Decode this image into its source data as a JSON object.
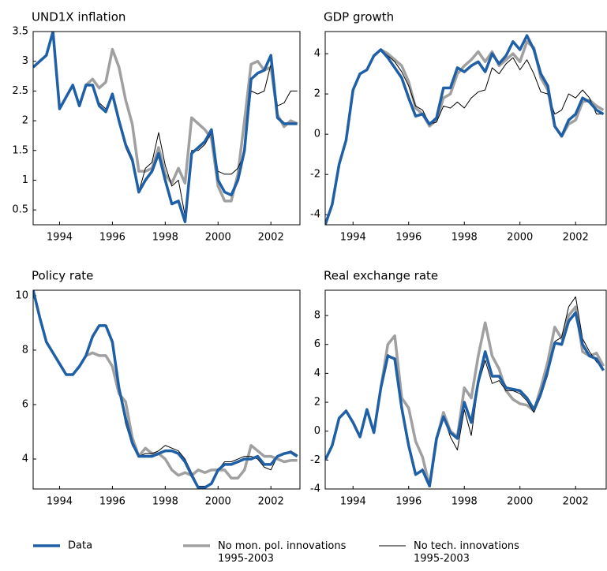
{
  "chart_data": [
    {
      "type": "line",
      "title": "UND1X inflation",
      "x": [
        1993,
        1993.25,
        1993.5,
        1993.75,
        1994,
        1994.25,
        1994.5,
        1994.75,
        1995,
        1995.25,
        1995.5,
        1995.75,
        1996,
        1996.25,
        1996.5,
        1996.75,
        1997,
        1997.25,
        1997.5,
        1997.75,
        1998,
        1998.25,
        1998.5,
        1998.75,
        1999,
        1999.25,
        1999.5,
        1999.75,
        2000,
        2000.25,
        2000.5,
        2000.75,
        2001,
        2001.25,
        2001.5,
        2001.75,
        2002,
        2002.25,
        2002.5,
        2002.75,
        2003
      ],
      "xlim": [
        1993,
        2003.1
      ],
      "xticks": [
        1994,
        1996,
        1998,
        2000,
        2002
      ],
      "ylim": [
        0.25,
        3.5
      ],
      "yticks": [
        0.5,
        1,
        1.5,
        2,
        2.5,
        3,
        3.5
      ],
      "series": [
        {
          "name": "Data",
          "color": "#1f5fa6",
          "values": [
            2.9,
            3.0,
            3.1,
            3.5,
            2.2,
            2.4,
            2.6,
            2.25,
            2.6,
            2.6,
            2.25,
            2.15,
            2.45,
            2.0,
            1.6,
            1.35,
            0.8,
            1.0,
            1.15,
            1.45,
            1.0,
            0.6,
            0.65,
            0.3,
            1.45,
            1.55,
            1.65,
            1.85,
            1.0,
            0.8,
            0.75,
            1.0,
            1.5,
            2.7,
            2.8,
            2.85,
            3.1,
            2.05,
            1.95,
            1.95,
            1.95
          ]
        },
        {
          "name": "No mon. pol. innovations\n1995-2003",
          "color": "#a0a0a0",
          "values": [
            null,
            null,
            null,
            null,
            null,
            null,
            null,
            null,
            2.6,
            2.7,
            2.55,
            2.65,
            3.2,
            2.9,
            2.35,
            1.95,
            1.15,
            1.15,
            1.2,
            1.55,
            1.1,
            0.95,
            1.2,
            0.95,
            2.05,
            1.95,
            1.85,
            1.7,
            0.9,
            0.65,
            0.65,
            1.1,
            2.0,
            2.95,
            3.0,
            2.85,
            2.9,
            2.1,
            1.9,
            2.0,
            1.95
          ]
        },
        {
          "name": "No tech. innovations\n1995-2003",
          "color": "#000000",
          "values": [
            null,
            null,
            null,
            null,
            null,
            null,
            null,
            null,
            2.6,
            2.6,
            2.3,
            2.2,
            2.45,
            1.95,
            1.55,
            1.3,
            0.8,
            1.2,
            1.3,
            1.8,
            1.25,
            0.9,
            1.0,
            0.4,
            1.5,
            1.5,
            1.6,
            1.8,
            1.15,
            1.1,
            1.1,
            1.2,
            1.45,
            2.5,
            2.45,
            2.5,
            2.95,
            2.25,
            2.3,
            2.5,
            2.5
          ]
        }
      ]
    },
    {
      "type": "line",
      "title": "GDP growth",
      "x": [
        1993,
        1993.25,
        1993.5,
        1993.75,
        1994,
        1994.25,
        1994.5,
        1994.75,
        1995,
        1995.25,
        1995.5,
        1995.75,
        1996,
        1996.25,
        1996.5,
        1996.75,
        1997,
        1997.25,
        1997.5,
        1997.75,
        1998,
        1998.25,
        1998.5,
        1998.75,
        1999,
        1999.25,
        1999.5,
        1999.75,
        2000,
        2000.25,
        2000.5,
        2000.75,
        2001,
        2001.25,
        2001.5,
        2001.75,
        2002,
        2002.25,
        2002.5,
        2002.75,
        2003
      ],
      "xlim": [
        1993,
        2003.1
      ],
      "xticks": [
        1994,
        1996,
        1998,
        2000,
        2002
      ],
      "ylim": [
        -4.5,
        5.1
      ],
      "yticks": [
        -4,
        -2,
        0,
        2,
        4
      ],
      "series": [
        {
          "name": "Data",
          "color": "#1f5fa6",
          "values": [
            -4.5,
            -3.5,
            -1.5,
            -0.3,
            2.2,
            3.0,
            3.2,
            3.9,
            4.2,
            3.8,
            3.3,
            2.8,
            1.8,
            0.9,
            1.0,
            0.5,
            0.8,
            2.3,
            2.3,
            3.3,
            3.1,
            3.4,
            3.6,
            3.1,
            4.0,
            3.5,
            3.9,
            4.6,
            4.2,
            4.9,
            4.2,
            3.0,
            2.4,
            0.4,
            -0.1,
            0.7,
            1.0,
            1.8,
            1.6,
            1.2,
            1.0
          ]
        },
        {
          "name": "No mon. pol. innovations\n1995-2003",
          "color": "#a0a0a0",
          "values": [
            null,
            null,
            null,
            null,
            null,
            null,
            null,
            null,
            4.2,
            4.0,
            3.7,
            3.4,
            2.6,
            1.3,
            1.0,
            0.4,
            0.7,
            1.8,
            2.0,
            3.0,
            3.4,
            3.7,
            4.1,
            3.6,
            4.1,
            3.4,
            3.7,
            4.0,
            3.6,
            4.6,
            4.3,
            2.8,
            2.2,
            0.4,
            -0.1,
            0.5,
            0.7,
            1.6,
            1.7,
            1.4,
            1.2
          ]
        },
        {
          "name": "No tech. innovations\n1995-2003",
          "color": "#000000",
          "values": [
            null,
            null,
            null,
            null,
            null,
            null,
            null,
            null,
            4.2,
            3.9,
            3.6,
            3.1,
            2.4,
            1.4,
            1.2,
            0.5,
            0.6,
            1.4,
            1.3,
            1.6,
            1.3,
            1.8,
            2.1,
            2.2,
            3.3,
            3.0,
            3.5,
            3.8,
            3.2,
            3.7,
            3.0,
            2.1,
            2.0,
            1.0,
            1.2,
            2.0,
            1.8,
            2.2,
            1.8,
            1.0,
            1.0
          ]
        }
      ]
    },
    {
      "type": "line",
      "title": "Policy rate",
      "x": [
        1993,
        1993.25,
        1993.5,
        1993.75,
        1994,
        1994.25,
        1994.5,
        1994.75,
        1995,
        1995.25,
        1995.5,
        1995.75,
        1996,
        1996.25,
        1996.5,
        1996.75,
        1997,
        1997.25,
        1997.5,
        1997.75,
        1998,
        1998.25,
        1998.5,
        1998.75,
        1999,
        1999.25,
        1999.5,
        1999.75,
        2000,
        2000.25,
        2000.5,
        2000.75,
        2001,
        2001.25,
        2001.5,
        2001.75,
        2002,
        2002.25,
        2002.5,
        2002.75,
        2003
      ],
      "xlim": [
        1993,
        2003.1
      ],
      "xticks": [
        1994,
        1996,
        1998,
        2000,
        2002
      ],
      "ylim": [
        2.9,
        10.2
      ],
      "yticks": [
        4,
        6,
        8,
        10
      ],
      "series": [
        {
          "name": "Data",
          "color": "#1f5fa6",
          "values": [
            10.2,
            9.2,
            8.3,
            7.9,
            7.5,
            7.1,
            7.1,
            7.4,
            7.8,
            8.5,
            8.9,
            8.9,
            8.3,
            6.6,
            5.5,
            4.6,
            4.1,
            4.1,
            4.1,
            4.2,
            4.3,
            4.3,
            4.2,
            3.9,
            3.4,
            2.95,
            2.95,
            3.1,
            3.6,
            3.8,
            3.8,
            3.9,
            4.0,
            4.0,
            4.1,
            3.8,
            3.8,
            4.1,
            4.2,
            4.25,
            4.1
          ]
        },
        {
          "name": "No mon. pol. innovations\n1995-2003",
          "color": "#a0a0a0",
          "values": [
            null,
            null,
            null,
            null,
            null,
            null,
            null,
            null,
            7.8,
            7.9,
            7.8,
            7.8,
            7.4,
            6.4,
            6.1,
            4.8,
            4.1,
            4.4,
            4.2,
            4.2,
            4.0,
            3.6,
            3.4,
            3.5,
            3.4,
            3.6,
            3.5,
            3.6,
            3.6,
            3.6,
            3.3,
            3.3,
            3.6,
            4.5,
            4.3,
            4.1,
            4.1,
            4.0,
            3.9,
            3.95,
            3.95
          ]
        },
        {
          "name": "No tech. innovations\n1995-2003",
          "color": "#000000",
          "values": [
            null,
            null,
            null,
            null,
            null,
            null,
            null,
            null,
            7.8,
            8.5,
            8.9,
            8.9,
            8.2,
            6.5,
            5.3,
            4.5,
            4.1,
            4.2,
            4.2,
            4.3,
            4.5,
            4.4,
            4.3,
            4.0,
            3.5,
            3.0,
            3.0,
            3.1,
            3.6,
            3.9,
            3.9,
            4.0,
            4.1,
            4.1,
            4.0,
            3.7,
            3.6,
            4.1,
            4.2,
            4.3,
            4.15
          ]
        }
      ]
    },
    {
      "type": "line",
      "title": "Real exchange rate",
      "x": [
        1993,
        1993.25,
        1993.5,
        1993.75,
        1994,
        1994.25,
        1994.5,
        1994.75,
        1995,
        1995.25,
        1995.5,
        1995.75,
        1996,
        1996.25,
        1996.5,
        1996.75,
        1997,
        1997.25,
        1997.5,
        1997.75,
        1998,
        1998.25,
        1998.5,
        1998.75,
        1999,
        1999.25,
        1999.5,
        1999.75,
        2000,
        2000.25,
        2000.5,
        2000.75,
        2001,
        2001.25,
        2001.5,
        2001.75,
        2002,
        2002.25,
        2002.5,
        2002.75,
        2003
      ],
      "xlim": [
        1993,
        2003.1
      ],
      "xticks": [
        1994,
        1996,
        1998,
        2000,
        2002
      ],
      "ylim": [
        -4,
        9.75
      ],
      "yticks": [
        -4,
        -2,
        0,
        2,
        4,
        6,
        8
      ],
      "series": [
        {
          "name": "Data",
          "color": "#1f5fa6",
          "values": [
            -2.0,
            -1.0,
            0.9,
            1.4,
            0.6,
            -0.4,
            1.5,
            -0.1,
            3.0,
            5.2,
            5.0,
            1.6,
            -1.0,
            -3.0,
            -2.7,
            -3.8,
            -0.5,
            1.0,
            -0.1,
            -0.5,
            2.0,
            0.6,
            3.4,
            5.5,
            3.8,
            3.8,
            3.0,
            2.9,
            2.8,
            2.3,
            1.5,
            2.6,
            4.2,
            6.1,
            6.0,
            7.6,
            8.2,
            6.0,
            5.2,
            5.0,
            4.2
          ]
        },
        {
          "name": "No mon. pol. innovations\n1995-2003",
          "color": "#a0a0a0",
          "values": [
            null,
            null,
            null,
            null,
            null,
            null,
            null,
            null,
            3.0,
            6.0,
            6.6,
            2.3,
            1.6,
            -0.7,
            -1.8,
            -3.8,
            -0.6,
            1.3,
            0.0,
            -0.4,
            3.0,
            2.3,
            5.2,
            7.5,
            5.2,
            4.3,
            2.8,
            2.2,
            1.9,
            1.8,
            1.4,
            3.0,
            4.8,
            7.2,
            6.4,
            8.0,
            8.6,
            5.5,
            5.2,
            5.4,
            4.5
          ]
        },
        {
          "name": "No tech. innovations\n1995-2003",
          "color": "#000000",
          "values": [
            null,
            null,
            null,
            null,
            null,
            null,
            null,
            null,
            3.0,
            5.3,
            5.0,
            1.4,
            -1.2,
            -3.0,
            -2.6,
            -3.8,
            -0.6,
            1.0,
            -0.4,
            -1.3,
            1.5,
            -0.3,
            3.2,
            4.9,
            3.3,
            3.5,
            2.8,
            2.8,
            2.6,
            2.1,
            1.3,
            2.4,
            3.9,
            6.2,
            6.5,
            8.6,
            9.3,
            6.4,
            5.5,
            4.8,
            4.3
          ]
        }
      ]
    }
  ]
}
